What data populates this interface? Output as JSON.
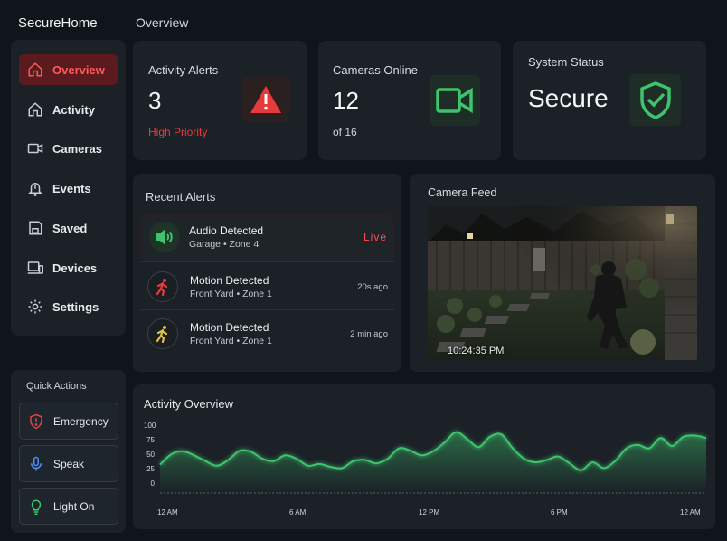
{
  "app": {
    "title": "SecureHome",
    "page_title": "Overview"
  },
  "sidebar": {
    "items": [
      {
        "label": "Overview",
        "icon": "home-icon",
        "active": true
      },
      {
        "label": "Activity",
        "icon": "house-outline-icon"
      },
      {
        "label": "Cameras",
        "icon": "camera-icon"
      },
      {
        "label": "Events",
        "icon": "bell-alert-icon"
      },
      {
        "label": "Saved",
        "icon": "save-icon"
      },
      {
        "label": "Devices",
        "icon": "devices-icon"
      },
      {
        "label": "Settings",
        "icon": "gear-icon"
      }
    ]
  },
  "quick_actions": {
    "title": "Quick Actions",
    "items": [
      {
        "label": "Emergency",
        "icon": "shield-alert-icon",
        "color": "#e0454a"
      },
      {
        "label": "Speak",
        "icon": "microphone-icon",
        "color": "#4f8ff7"
      },
      {
        "label": "Light On",
        "icon": "lightbulb-icon",
        "color": "#3ec46d"
      }
    ]
  },
  "stats": {
    "alerts": {
      "label": "Activity Alerts",
      "value": "3",
      "sub": "High Priority",
      "icon": "warning-icon",
      "color": "#e63b3b"
    },
    "cameras": {
      "label": "Cameras Online",
      "value": "12",
      "sub": "of 16",
      "icon": "video-camera-icon",
      "color": "#3ec46d"
    },
    "system": {
      "label": "System Status",
      "value": "Secure",
      "icon": "shield-check-icon",
      "color": "#3ec46d"
    }
  },
  "recent_alerts": {
    "title": "Recent Alerts",
    "items": [
      {
        "title": "Audio Detected",
        "sub": "Garage • Zone 4",
        "time": "Live",
        "icon": "speaker-icon",
        "live": true
      },
      {
        "title": "Motion Detected",
        "sub": "Front Yard • Zone 1",
        "time": "20s ago",
        "icon": "running-person-icon",
        "color": "#e63b3b"
      },
      {
        "title": "Motion Detected",
        "sub": "Front Yard • Zone 1",
        "time": "2 min ago",
        "icon": "running-person-icon",
        "color": "#e0c23a"
      }
    ]
  },
  "camera_feed": {
    "title": "Camera Feed",
    "timestamp": "10:24:35 PM"
  },
  "chart_data": {
    "type": "area",
    "title": "Activity Overview",
    "y_ticks": [
      "100",
      "75",
      "50",
      "25",
      "0"
    ],
    "ylim": [
      0,
      100
    ],
    "x_ticks": [
      "12 AM",
      "6 AM",
      "12 PM",
      "6 PM",
      "12 AM"
    ],
    "grid": false,
    "color": "#3ec46d",
    "x": [
      0,
      0.5,
      1,
      1.5,
      2,
      2.5,
      3,
      3.5,
      4,
      4.5,
      5,
      5.5,
      6,
      6.5,
      7,
      7.5,
      8,
      8.5,
      9,
      9.5,
      10,
      10.5,
      11,
      11.5,
      12,
      12.5,
      13,
      13.5,
      14,
      14.5,
      15,
      15.5,
      16,
      16.5,
      17,
      17.5,
      18,
      18.5,
      19,
      19.5,
      20,
      20.5,
      21,
      21.5,
      22,
      22.5,
      23,
      23.5,
      24
    ],
    "values": [
      32,
      50,
      55,
      48,
      38,
      30,
      40,
      56,
      54,
      42,
      38,
      48,
      42,
      30,
      33,
      28,
      26,
      38,
      40,
      34,
      42,
      60,
      56,
      48,
      55,
      70,
      88,
      76,
      62,
      80,
      84,
      60,
      42,
      36,
      40,
      46,
      34,
      22,
      36,
      26,
      38,
      60,
      66,
      60,
      78,
      64,
      80,
      82,
      78
    ]
  }
}
